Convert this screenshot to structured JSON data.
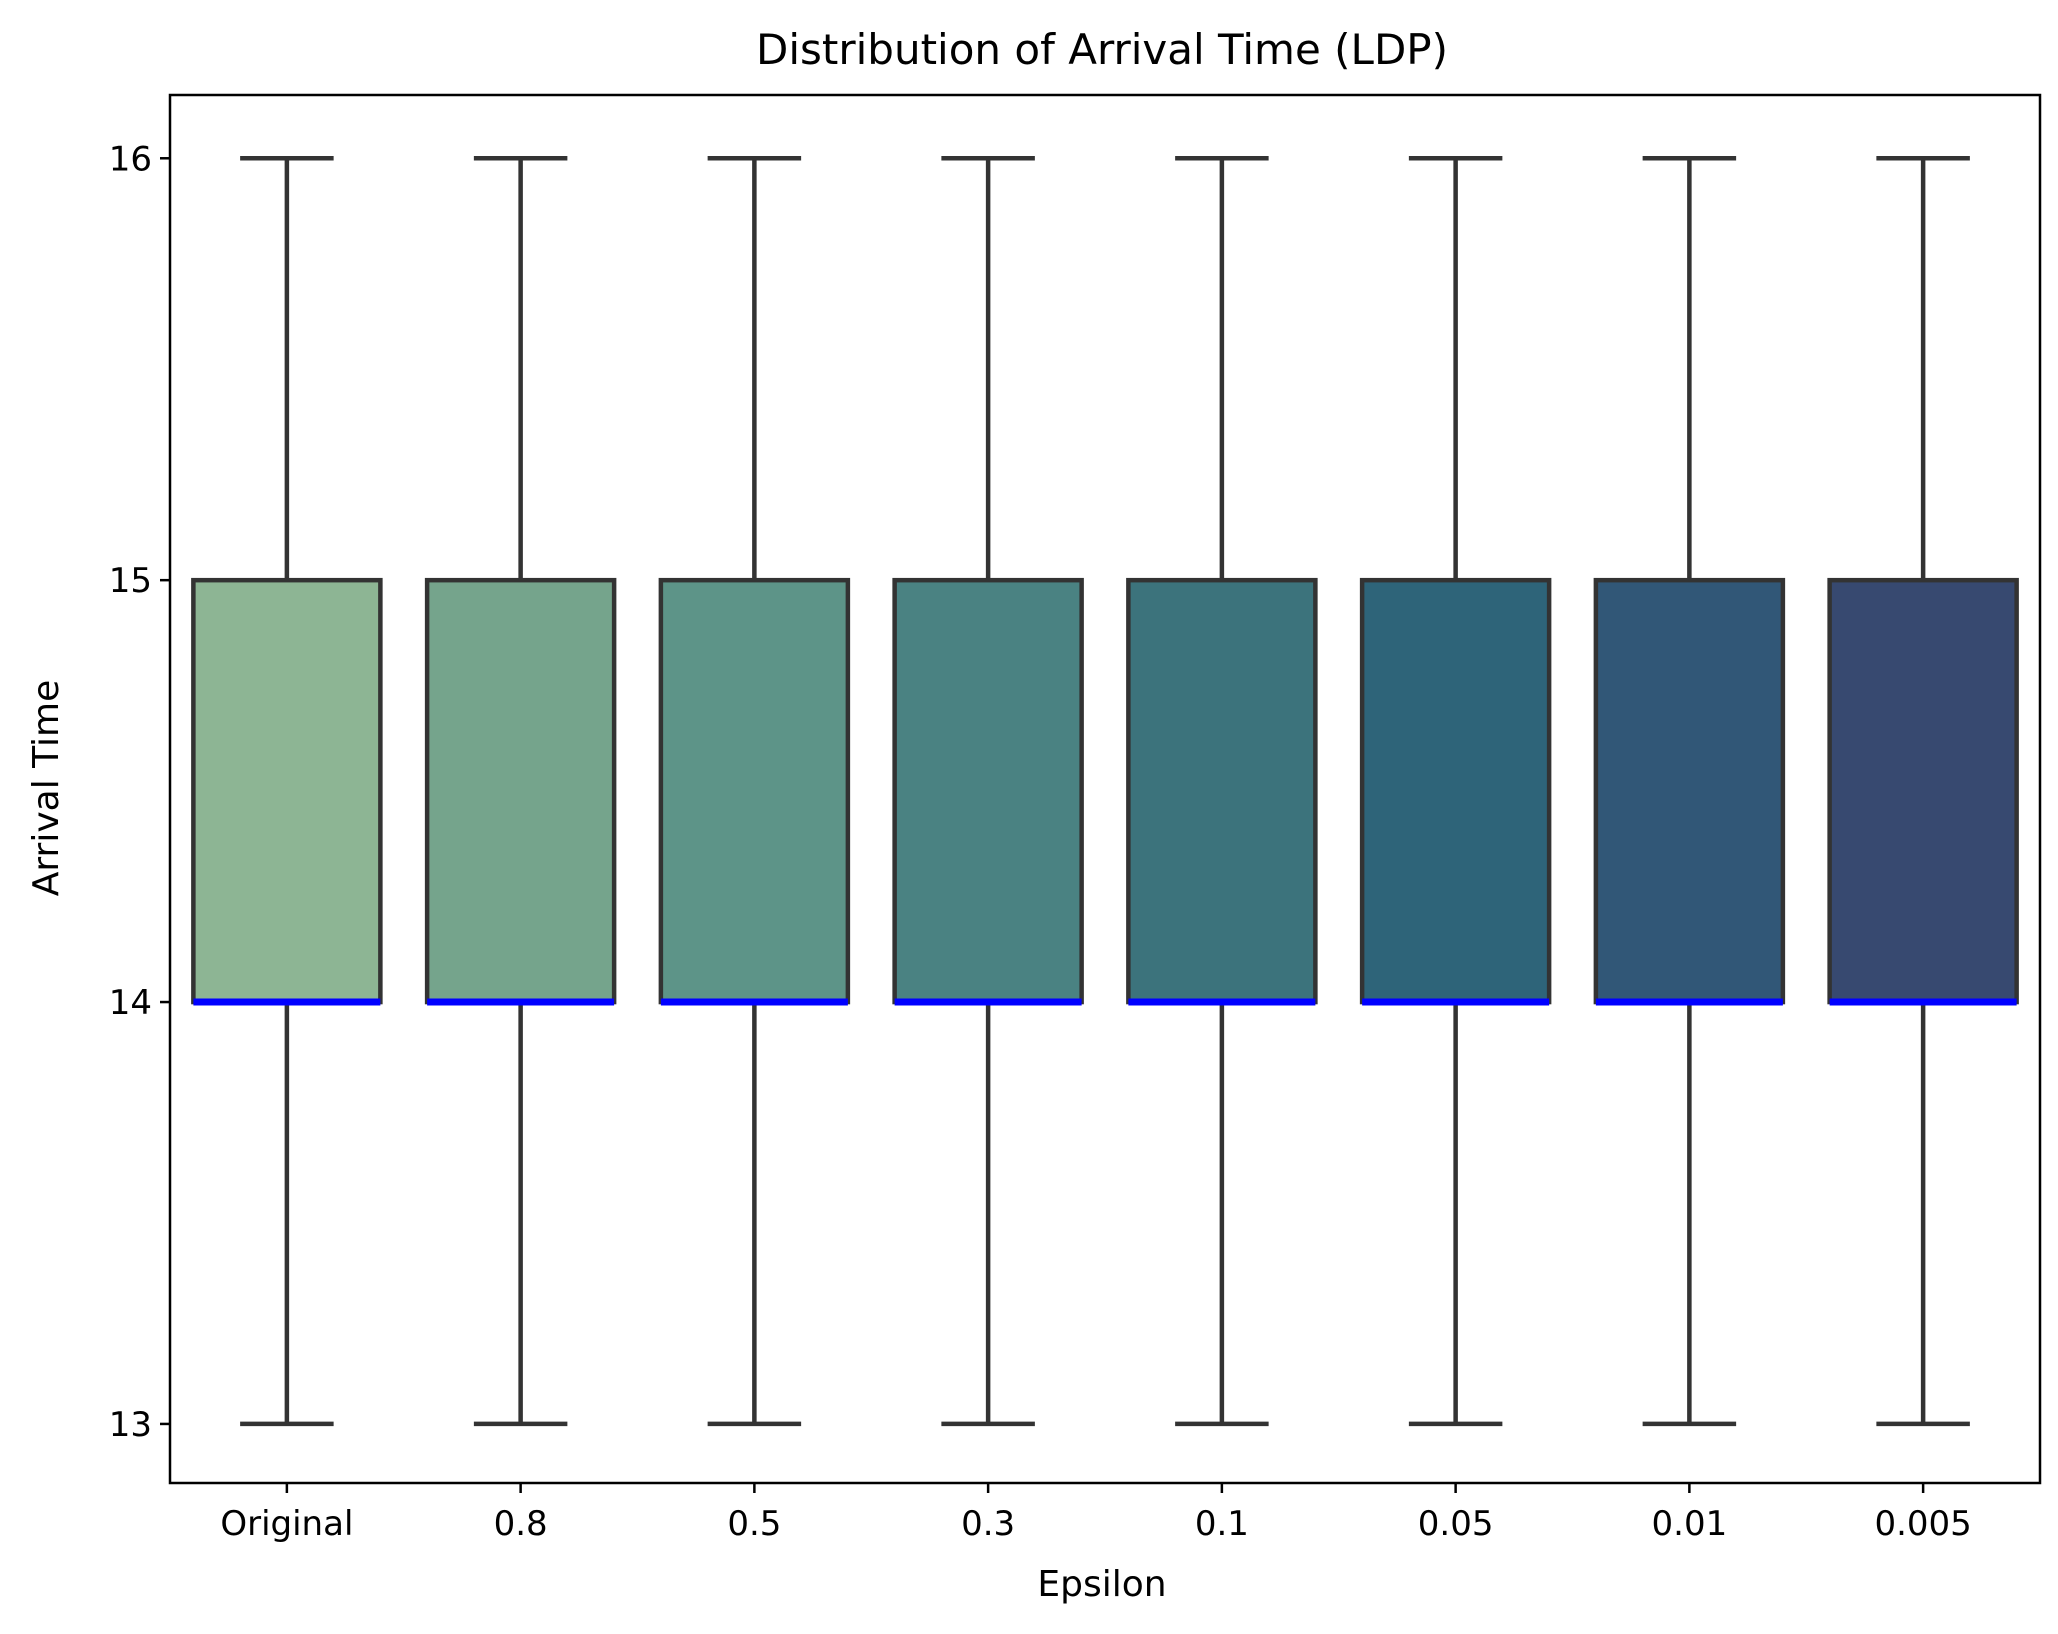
{
  "chart_data": {
    "type": "box",
    "title": "Distribution of Arrival Time (LDP)",
    "xlabel": "Epsilon",
    "ylabel": "Arrival Time",
    "categories": [
      "Original",
      "0.8",
      "0.5",
      "0.3",
      "0.1",
      "0.05",
      "0.01",
      "0.005"
    ],
    "boxes": [
      {
        "whisker_low": 13,
        "q1": 14,
        "median": 14,
        "q3": 15,
        "whisker_high": 16,
        "color": "#8db594"
      },
      {
        "whisker_low": 13,
        "q1": 14,
        "median": 14,
        "q3": 15,
        "whisker_high": 16,
        "color": "#75a48c"
      },
      {
        "whisker_low": 13,
        "q1": 14,
        "median": 14,
        "q3": 15,
        "whisker_high": 16,
        "color": "#5d9488"
      },
      {
        "whisker_low": 13,
        "q1": 14,
        "median": 14,
        "q3": 15,
        "whisker_high": 16,
        "color": "#4a8282"
      },
      {
        "whisker_low": 13,
        "q1": 14,
        "median": 14,
        "q3": 15,
        "whisker_high": 16,
        "color": "#3c737c"
      },
      {
        "whisker_low": 13,
        "q1": 14,
        "median": 14,
        "q3": 15,
        "whisker_high": 16,
        "color": "#2e6479"
      },
      {
        "whisker_low": 13,
        "q1": 14,
        "median": 14,
        "q3": 15,
        "whisker_high": 16,
        "color": "#315777"
      },
      {
        "whisker_low": 13,
        "q1": 14,
        "median": 14,
        "q3": 15,
        "whisker_high": 16,
        "color": "#374970"
      }
    ],
    "yticks": [
      "13",
      "14",
      "15",
      "16"
    ],
    "ylim": [
      12.86,
      16.15
    ],
    "grid": false,
    "median_color": "#0000ff",
    "box_edge_color": "#333333"
  }
}
